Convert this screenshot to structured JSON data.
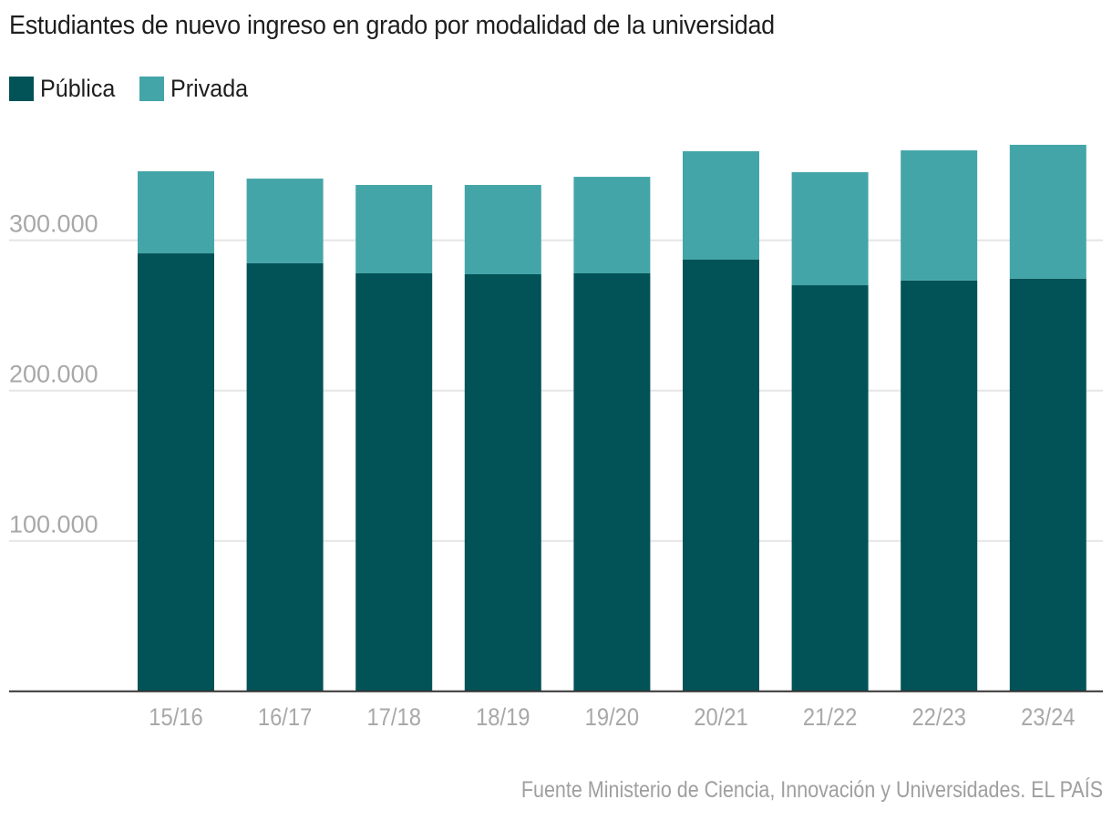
{
  "chart_data": {
    "type": "bar",
    "stacked": true,
    "title": "Estudiantes de nuevo ingreso en grado por modalidad de la universidad",
    "xlabel": "",
    "ylabel": "",
    "categories": [
      "15/16",
      "16/17",
      "17/18",
      "18/19",
      "19/20",
      "20/21",
      "21/22",
      "22/23",
      "23/24"
    ],
    "series": [
      {
        "name": "Pública",
        "color": "#025357",
        "values": [
          291300,
          284700,
          278000,
          277400,
          278000,
          287100,
          270100,
          273200,
          274400
        ]
      },
      {
        "name": "Privada",
        "color": "#44a5a8",
        "values": [
          54600,
          56300,
          58800,
          59400,
          64200,
          72100,
          75200,
          86600,
          89100
        ]
      }
    ],
    "ylim": [
      0,
      372000
    ],
    "yticks": [
      100000,
      200000,
      300000
    ],
    "ytick_labels": [
      "100.000",
      "200.000",
      "300.000"
    ],
    "grid": true,
    "legend_position": "top-left",
    "source": "Fuente Ministerio de Ciencia, Innovación y Universidades. EL PAÍS"
  },
  "colors": {
    "gridline": "#e6e6e6",
    "baseline": "#333333",
    "tick_label": "#a8a8a8"
  }
}
